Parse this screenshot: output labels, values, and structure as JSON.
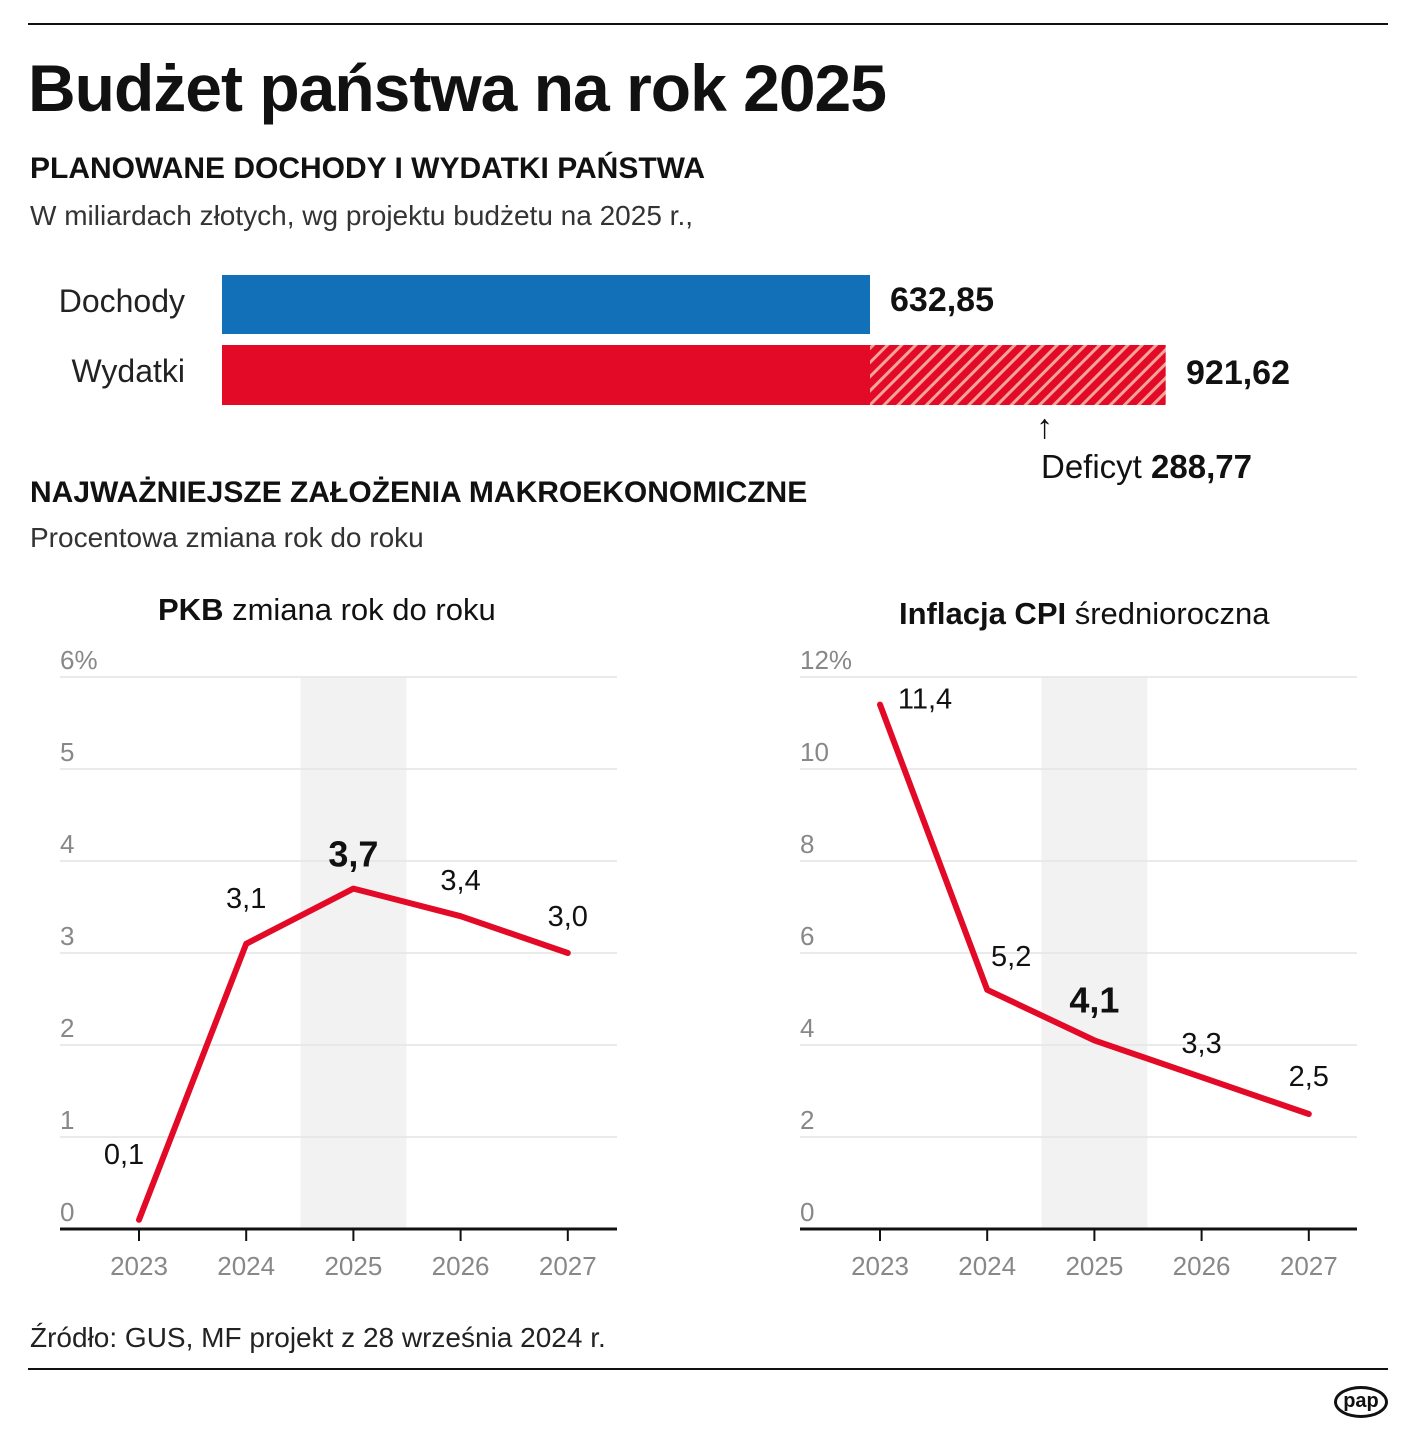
{
  "title": "Budżet państwa na rok 2025",
  "section1": {
    "heading": "PLANOWANE DOCHODY I WYDATKI PAŃSTWA",
    "subtitle": "W miliardach złotych, wg projektu budżetu na 2025 r.,"
  },
  "section2": {
    "heading": "NAJWAŻNIEJSZE ZAŁOŻENIA MAKROEKONOMICZNE",
    "subtitle": "Procentowa zmiana rok do roku"
  },
  "source": "Źródło: GUS, MF projekt z 28 września 2024 r.",
  "logo": "pap",
  "colors": {
    "blue": "#1170b8",
    "red": "#e30a28",
    "hatch": "#f4a39a",
    "band": "#f2f2f2"
  },
  "chart_data": [
    {
      "type": "bar",
      "orientation": "horizontal",
      "categories": [
        "Dochody",
        "Wydatki"
      ],
      "values": [
        632.85,
        921.62
      ],
      "value_labels": [
        "632,85",
        "921,62"
      ],
      "annotation": {
        "label": "Deficyt",
        "value": 288.77,
        "value_label": "288,77"
      }
    },
    {
      "type": "line",
      "title_bold": "PKB",
      "title_rest": " zmiana rok do roku",
      "x": [
        "2023",
        "2024",
        "2025",
        "2026",
        "2027"
      ],
      "values": [
        0.1,
        3.1,
        3.7,
        3.4,
        3.0
      ],
      "value_labels": [
        "0,1",
        "3,1",
        "3,7",
        "3,4",
        "3,0"
      ],
      "highlight": "2025",
      "ylim": [
        0,
        6
      ],
      "yticks": [
        "0",
        "1",
        "2",
        "3",
        "4",
        "5",
        "6%"
      ],
      "grid": true
    },
    {
      "type": "line",
      "title_bold": "Inflacja CPI",
      "title_rest": " średnioroczna",
      "x": [
        "2023",
        "2024",
        "2025",
        "2026",
        "2027"
      ],
      "values": [
        11.4,
        5.2,
        4.1,
        3.3,
        2.5
      ],
      "value_labels": [
        "11,4",
        "5,2",
        "4,1",
        "3,3",
        "2,5"
      ],
      "highlight": "2025",
      "ylim": [
        0,
        12
      ],
      "yticks": [
        "0",
        "2",
        "4",
        "6",
        "8",
        "10",
        "12%"
      ],
      "grid": true
    }
  ]
}
